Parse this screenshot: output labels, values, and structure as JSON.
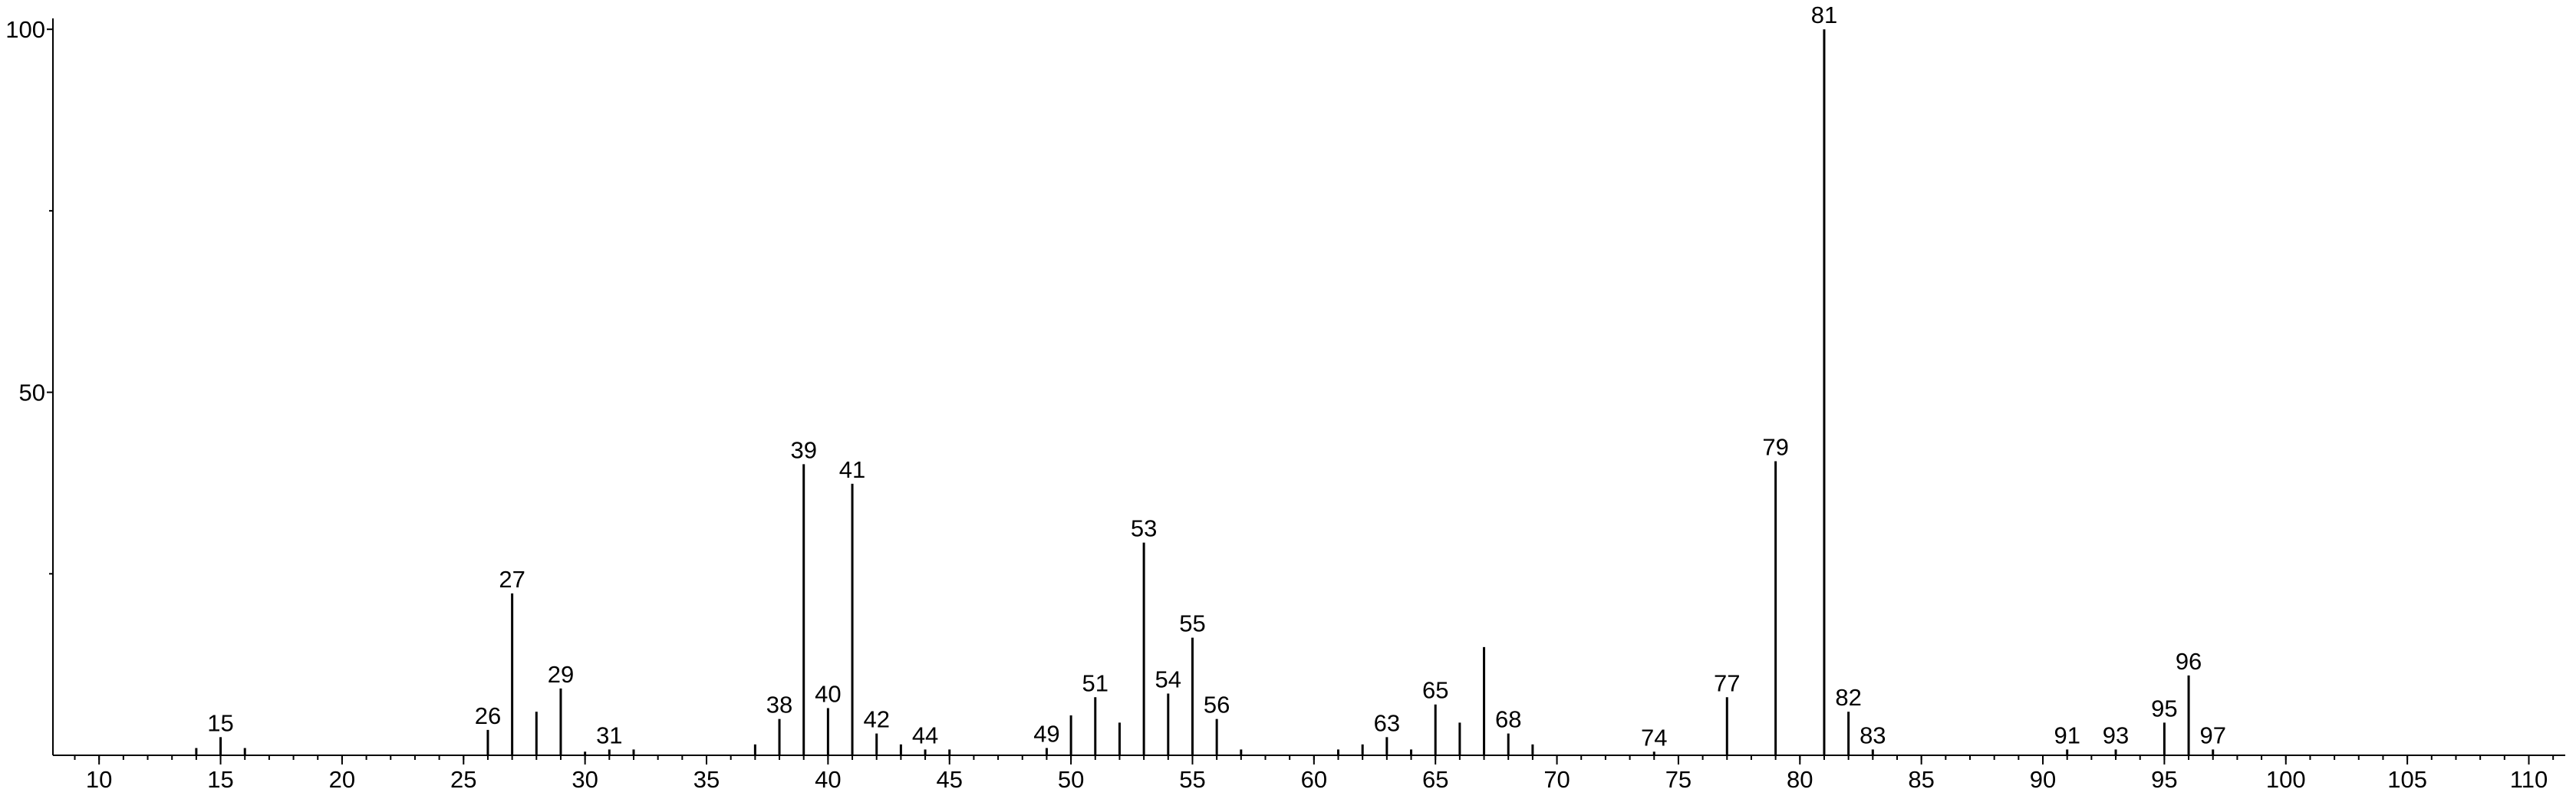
{
  "chart_data": {
    "type": "stem",
    "x": [
      14,
      15,
      16,
      26,
      27,
      28,
      29,
      30,
      31,
      32,
      37,
      38,
      39,
      40,
      41,
      42,
      43,
      44,
      45,
      49,
      50,
      51,
      52,
      53,
      54,
      55,
      56,
      57,
      61,
      62,
      63,
      64,
      65,
      66,
      67,
      68,
      69,
      74,
      77,
      79,
      81,
      82,
      83,
      91,
      93,
      95,
      96,
      97
    ],
    "values": [
      1,
      2.5,
      1,
      3.5,
      22.3,
      6,
      9.2,
      0.5,
      0.8,
      0.8,
      1.5,
      5,
      40.1,
      6.5,
      37.4,
      3,
      1.5,
      0.8,
      0.8,
      1,
      5.5,
      8,
      4.5,
      29.3,
      8.5,
      16.2,
      5,
      0.8,
      0.8,
      1.5,
      2.5,
      0.8,
      7,
      4.5,
      14.9,
      3,
      1.5,
      0.5,
      8,
      40.5,
      100,
      6,
      0.8,
      0.8,
      0.8,
      4.5,
      11,
      0.8
    ],
    "peak_labels": [
      15,
      26,
      27,
      29,
      31,
      38,
      39,
      40,
      41,
      42,
      44,
      49,
      51,
      53,
      54,
      55,
      56,
      63,
      65,
      68,
      74,
      77,
      79,
      81,
      82,
      83,
      91,
      93,
      95,
      96,
      97
    ],
    "color": "#000000",
    "xlim": [
      8.1,
      111.5
    ],
    "xticks": [
      10,
      15,
      20,
      25,
      30,
      35,
      40,
      45,
      50,
      55,
      60,
      65,
      70,
      75,
      80,
      85,
      90,
      95,
      100,
      105,
      110
    ],
    "xminorstep": 1,
    "ylim": [
      0,
      101.5
    ],
    "yticks": [
      50,
      100
    ],
    "yminorticks": [
      25,
      75
    ]
  }
}
